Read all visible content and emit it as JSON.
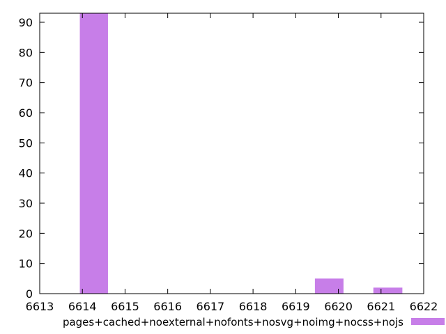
{
  "chart_data": {
    "type": "bar",
    "title": "",
    "xlabel": "",
    "ylabel": "",
    "xlim": [
      6613,
      6622
    ],
    "ylim": [
      0,
      93
    ],
    "x_ticks": [
      "6613",
      "6614",
      "6615",
      "6616",
      "6617",
      "6618",
      "6619",
      "6620",
      "6621",
      "6622"
    ],
    "y_ticks": [
      "0",
      "10",
      "20",
      "30",
      "40",
      "50",
      "60",
      "70",
      "80",
      "90"
    ],
    "bars": [
      {
        "x_start": 6613.94,
        "x_end": 6614.6,
        "value": 93
      },
      {
        "x_start": 6619.45,
        "x_end": 6620.12,
        "value": 5
      },
      {
        "x_start": 6620.82,
        "x_end": 6621.5,
        "value": 2
      }
    ],
    "series": [
      {
        "name": "pages+cached+noexternal+nofonts+nosvg+noimg+nocss+nojs",
        "color": "#c77ee8"
      }
    ],
    "grid": false,
    "legend_position": "bottom-right"
  }
}
